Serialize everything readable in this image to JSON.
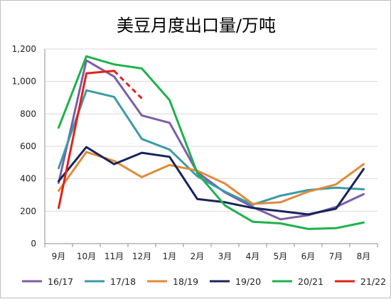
{
  "chart_data": {
    "type": "line",
    "title": "美豆月度出口量/万吨",
    "xlabel": "",
    "ylabel": "",
    "categories": [
      "9月",
      "10月",
      "11月",
      "12月",
      "1月",
      "2月",
      "3月",
      "4月",
      "5月",
      "6月",
      "7月",
      "8月"
    ],
    "ylim": [
      0,
      1200
    ],
    "yticks": [
      0,
      200,
      400,
      600,
      800,
      1000,
      1200
    ],
    "ytick_labels": [
      "0",
      "200",
      "400",
      "600",
      "800",
      "1,000",
      "1,200"
    ],
    "grid": "horizontal",
    "legend_position": "bottom",
    "series": [
      {
        "name": "16/17",
        "color": "#7B5EA7",
        "dashed_tail_from": null,
        "values": [
          375,
          1130,
          1030,
          790,
          745,
          440,
          315,
          225,
          150,
          175,
          225,
          305
        ]
      },
      {
        "name": "17/18",
        "color": "#3B9AA8",
        "dashed_tail_from": null,
        "values": [
          465,
          945,
          905,
          645,
          580,
          415,
          320,
          240,
          295,
          330,
          345,
          335
        ]
      },
      {
        "name": "18/19",
        "color": "#E08B3A",
        "dashed_tail_from": null,
        "values": [
          325,
          565,
          510,
          410,
          485,
          450,
          370,
          245,
          255,
          320,
          365,
          490
        ]
      },
      {
        "name": "19/20",
        "color": "#17245C",
        "dashed_tail_from": null,
        "values": [
          385,
          595,
          490,
          560,
          535,
          275,
          255,
          220,
          200,
          180,
          215,
          460
        ]
      },
      {
        "name": "20/21",
        "color": "#1DB24B",
        "dashed_tail_from": null,
        "values": [
          715,
          1155,
          1105,
          1080,
          885,
          435,
          235,
          135,
          125,
          90,
          95,
          130
        ]
      },
      {
        "name": "21/22",
        "color": "#E32119",
        "dashed_tail_from": 2,
        "values": [
          220,
          1050,
          1065,
          895,
          null,
          null,
          null,
          null,
          null,
          null,
          null,
          null
        ]
      }
    ]
  }
}
